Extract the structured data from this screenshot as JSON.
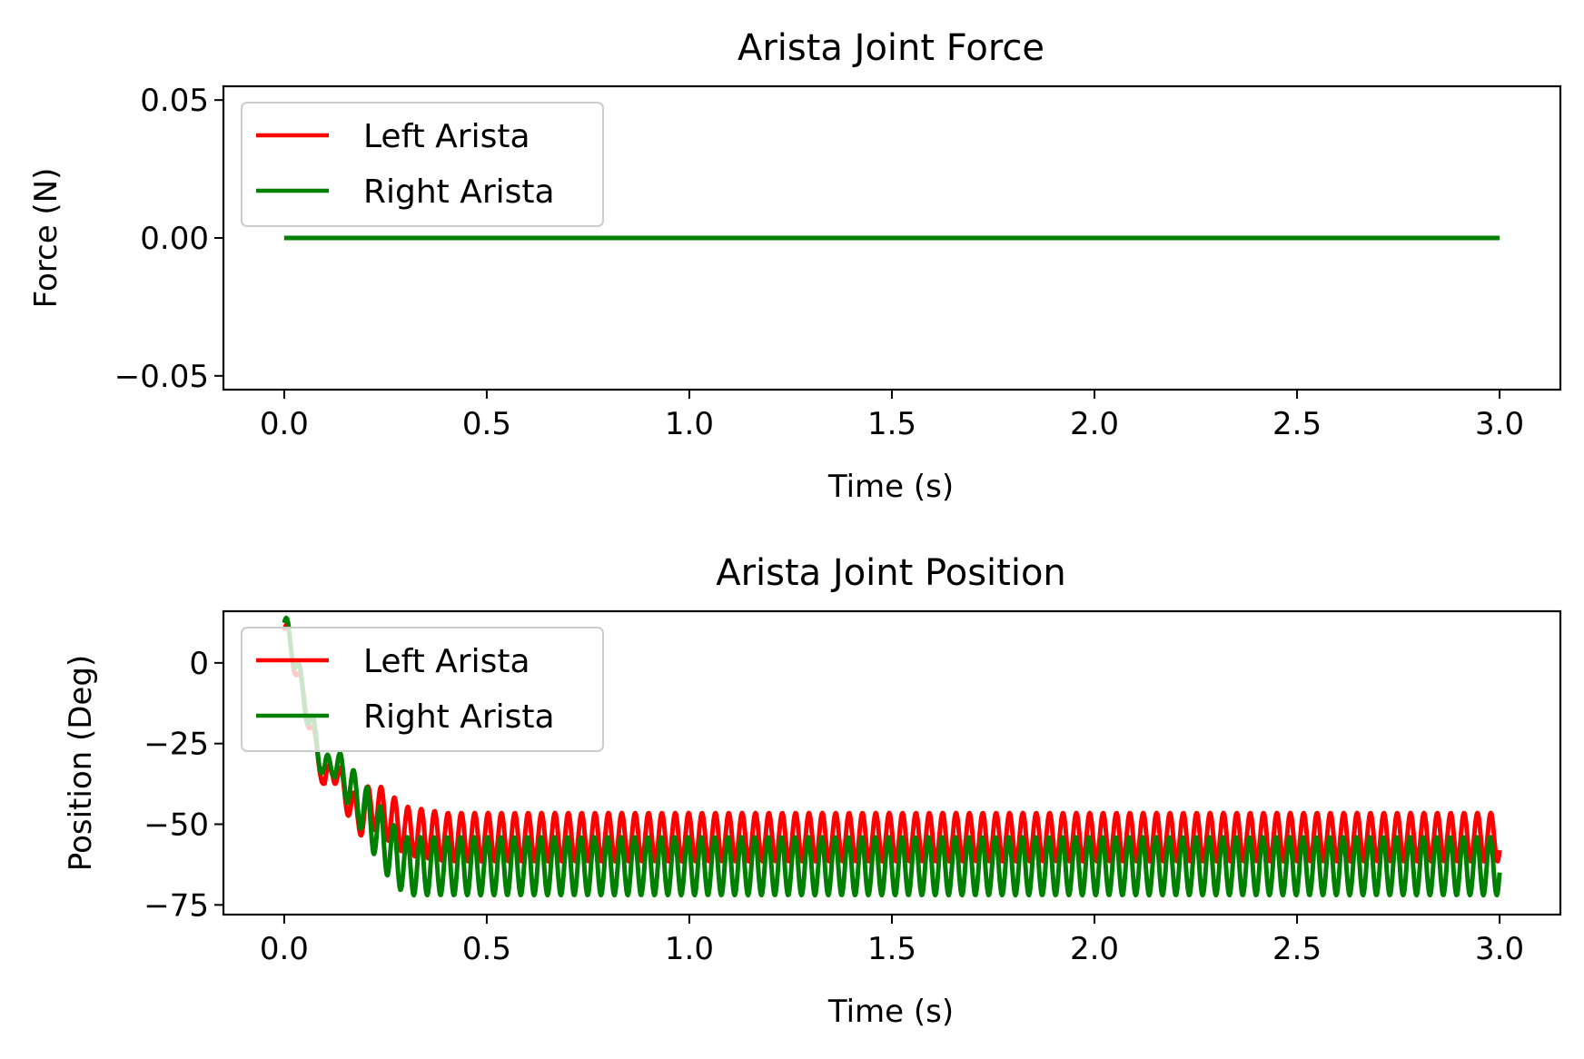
{
  "chart_data": [
    {
      "type": "line",
      "title": "Arista Joint Force",
      "xlabel": "Time (s)",
      "ylabel": "Force (N)",
      "xlim": [
        -0.15,
        3.15
      ],
      "ylim": [
        -0.055,
        0.055
      ],
      "xticks": [
        0.0,
        0.5,
        1.0,
        1.5,
        2.0,
        2.5,
        3.0
      ],
      "xtick_labels": [
        "0.0",
        "0.5",
        "1.0",
        "1.5",
        "2.0",
        "2.5",
        "3.0"
      ],
      "yticks": [
        0.05,
        0.0,
        -0.05
      ],
      "ytick_labels": [
        "0.05",
        "0.00",
        "−0.05"
      ],
      "grid": false,
      "legend": "upper-left",
      "series": [
        {
          "name": "Left Arista",
          "color": "#ff0000",
          "x": [
            0.0,
            3.0
          ],
          "y": [
            0.0,
            0.0
          ]
        },
        {
          "name": "Right Arista",
          "color": "#008000",
          "x": [
            0.0,
            3.0
          ],
          "y": [
            0.0,
            0.0
          ]
        }
      ]
    },
    {
      "type": "line",
      "title": "Arista Joint Position",
      "xlabel": "Time (s)",
      "ylabel": "Position (Deg)",
      "xlim": [
        -0.15,
        3.15
      ],
      "ylim": [
        -78,
        16
      ],
      "xticks": [
        0.0,
        0.5,
        1.0,
        1.5,
        2.0,
        2.5,
        3.0
      ],
      "xtick_labels": [
        "0.0",
        "0.5",
        "1.0",
        "1.5",
        "2.0",
        "2.5",
        "3.0"
      ],
      "yticks": [
        0,
        -25,
        -50,
        -75
      ],
      "ytick_labels": [
        "0",
        "−25",
        "−50",
        "−75"
      ],
      "grid": false,
      "legend": "upper-left",
      "series": [
        {
          "name": "Left Arista",
          "color": "#ff0000",
          "x": [
            0.0,
            0.01,
            0.03,
            0.05,
            0.07,
            0.09,
            0.1,
            0.12,
            0.15,
            0.18,
            0.22,
            0.26,
            0.3,
            0.4,
            0.6,
            1.0,
            1.5,
            2.0,
            2.5,
            3.0
          ],
          "y": [
            10,
            8,
            -2,
            -12,
            -22,
            -32,
            -38,
            -32,
            -40,
            -48,
            -44,
            -48,
            -52,
            -54,
            -54,
            -54,
            -54,
            -54,
            -54,
            -54
          ],
          "oscillation": {
            "period": 0.033,
            "amplitude": 7.5,
            "mean": -54,
            "start": 0.22
          }
        },
        {
          "name": "Right Arista",
          "color": "#008000",
          "x": [
            0.0,
            0.01,
            0.03,
            0.05,
            0.07,
            0.09,
            0.1,
            0.12,
            0.15,
            0.18,
            0.22,
            0.26,
            0.3,
            0.4,
            0.6,
            1.0,
            1.5,
            2.0,
            2.5,
            3.0
          ],
          "y": [
            11,
            9,
            0,
            -12,
            -20,
            -30,
            -34,
            -30,
            -36,
            -42,
            -50,
            -58,
            -63,
            -63,
            -63,
            -63,
            -63,
            -63,
            -63,
            -63
          ],
          "oscillation": {
            "period": 0.033,
            "amplitude": 9,
            "mean": -63,
            "start": 0.22
          }
        }
      ]
    }
  ]
}
